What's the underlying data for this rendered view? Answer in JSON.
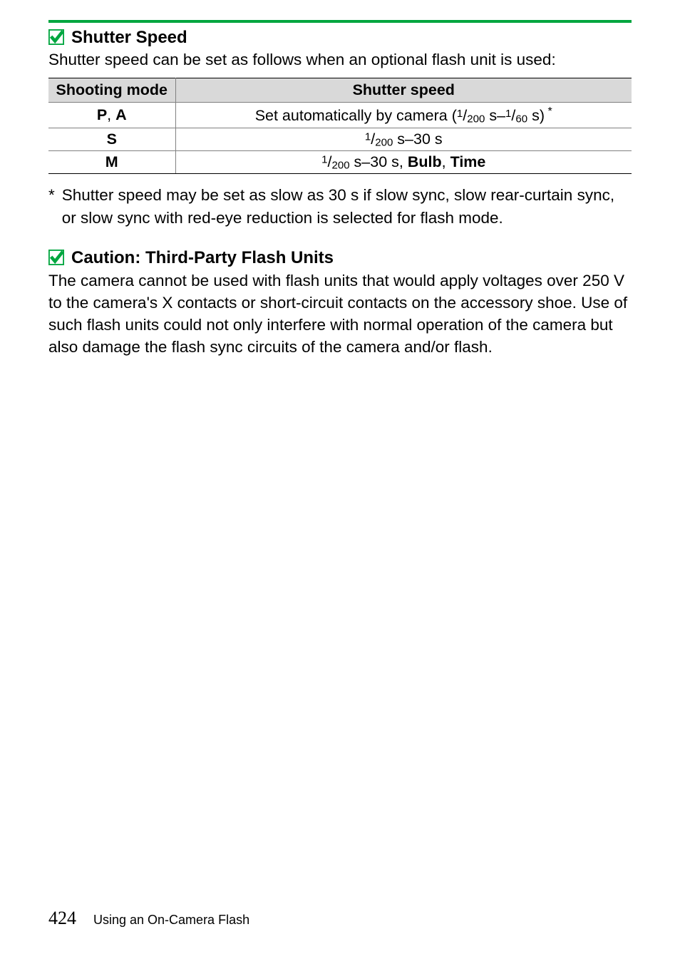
{
  "colors": {
    "rule": "#00a63f",
    "check_fill": "#00a63f",
    "header_bg": "#d9d9d9",
    "border": "#808080",
    "text": "#000000"
  },
  "section1": {
    "heading": "Shutter Speed",
    "intro": "Shutter speed can be set as follows when an optional flash unit is used:"
  },
  "table": {
    "headers": [
      "Shooting mode",
      "Shutter speed"
    ],
    "rows": [
      {
        "mode_html": "P<span style=\"font-weight:400\">, </span>A",
        "speed_html": "Set automatically by camera (<span class=\"frac-sup\">1</span>/<span class=\"frac-sub\">200</span> s–<span class=\"frac-sup\">1</span>/<span class=\"frac-sub\">60</span> s)<span class=\"sup-star\"> *</span>"
      },
      {
        "mode_html": "S",
        "speed_html": "<span class=\"frac-sup\">1</span>/<span class=\"frac-sub\">200</span> s–30 s"
      },
      {
        "mode_html": "M",
        "speed_html": "<span class=\"frac-sup\">1</span>/<span class=\"frac-sub\">200</span> s–30 s, <span class=\"bold\">Bulb</span>, <span class=\"bold\">Time</span>"
      }
    ]
  },
  "footnote": {
    "mark": "*",
    "text": "Shutter speed may be set as slow as 30 s if slow sync, slow rear-curtain sync, or slow sync with red-eye reduction is selected for flash mode."
  },
  "section2": {
    "heading": "Caution: Third-Party Flash Units",
    "body": "The camera cannot be used with flash units that would apply voltages over 250 V to the camera's X contacts or short-circuit contacts on the accessory shoe. Use of such flash units could not only interfere with normal operation of the camera but also damage the flash sync circuits of the camera and/or flash."
  },
  "footer": {
    "page": "424",
    "title": "Using an On-Camera Flash"
  }
}
